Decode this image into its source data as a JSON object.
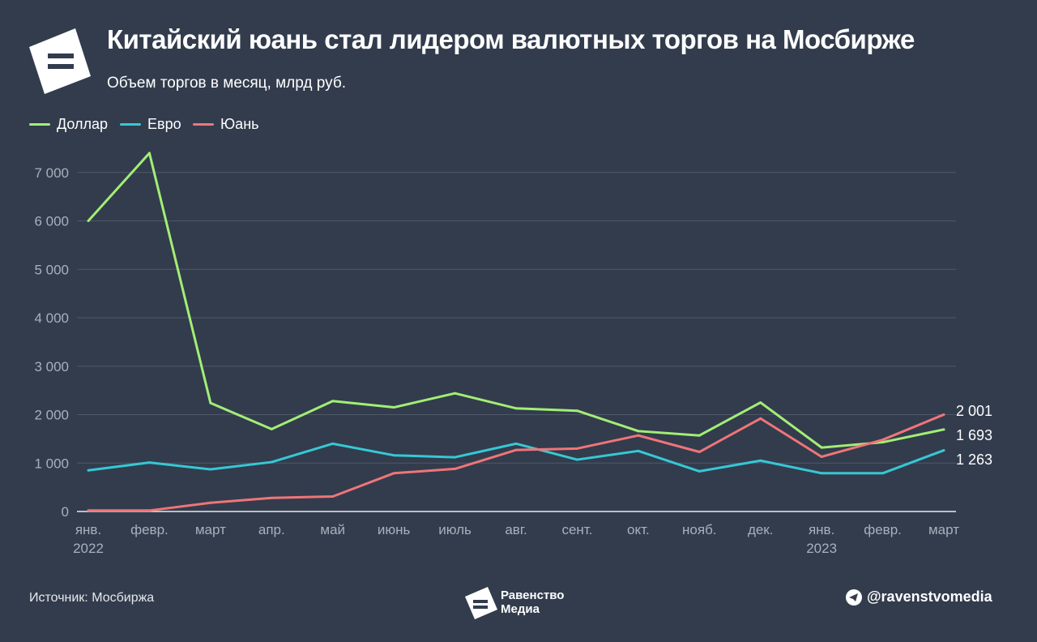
{
  "header": {
    "title": "Китайский юань стал лидером валютных торгов на Мосбирже",
    "subtitle": "Объем торгов в месяц, млрд руб."
  },
  "footer": {
    "source": "Источник: Мосбиржа",
    "brand_line1": "Равенство",
    "brand_line2": "Медиа",
    "telegram": "@ravenstvomedia"
  },
  "chart_data": {
    "type": "line",
    "categories": [
      "янв.|2022",
      "февр.",
      "март",
      "апр.",
      "май",
      "июнь",
      "июль",
      "авг.",
      "сент.",
      "окт.",
      "нояб.",
      "дек.",
      "янв.|2023",
      "февр.",
      "март"
    ],
    "ylim": [
      0,
      7400
    ],
    "yticks": [
      0,
      1000,
      2000,
      3000,
      4000,
      5000,
      6000,
      7000
    ],
    "ytick_labels": [
      "0",
      "1 000",
      "2 000",
      "3 000",
      "4 000",
      "5 000",
      "6 000",
      "7 000"
    ],
    "grid": true,
    "legend": "top-left",
    "series": [
      {
        "name": "Доллар",
        "color": "#a3ee74",
        "values": [
          6000,
          7400,
          2240,
          1700,
          2280,
          2150,
          2440,
          2130,
          2080,
          1660,
          1570,
          2250,
          1320,
          1430,
          1693
        ],
        "end_label": "1 693"
      },
      {
        "name": "Евро",
        "color": "#36c8d4",
        "values": [
          850,
          1010,
          870,
          1020,
          1400,
          1160,
          1120,
          1400,
          1070,
          1250,
          830,
          1050,
          790,
          790,
          1263
        ],
        "end_label": "1 263"
      },
      {
        "name": "Юань",
        "color": "#ef7578",
        "values": [
          20,
          20,
          180,
          280,
          310,
          790,
          880,
          1270,
          1300,
          1570,
          1230,
          1920,
          1130,
          1480,
          2001
        ],
        "end_label": "2 001"
      }
    ]
  }
}
